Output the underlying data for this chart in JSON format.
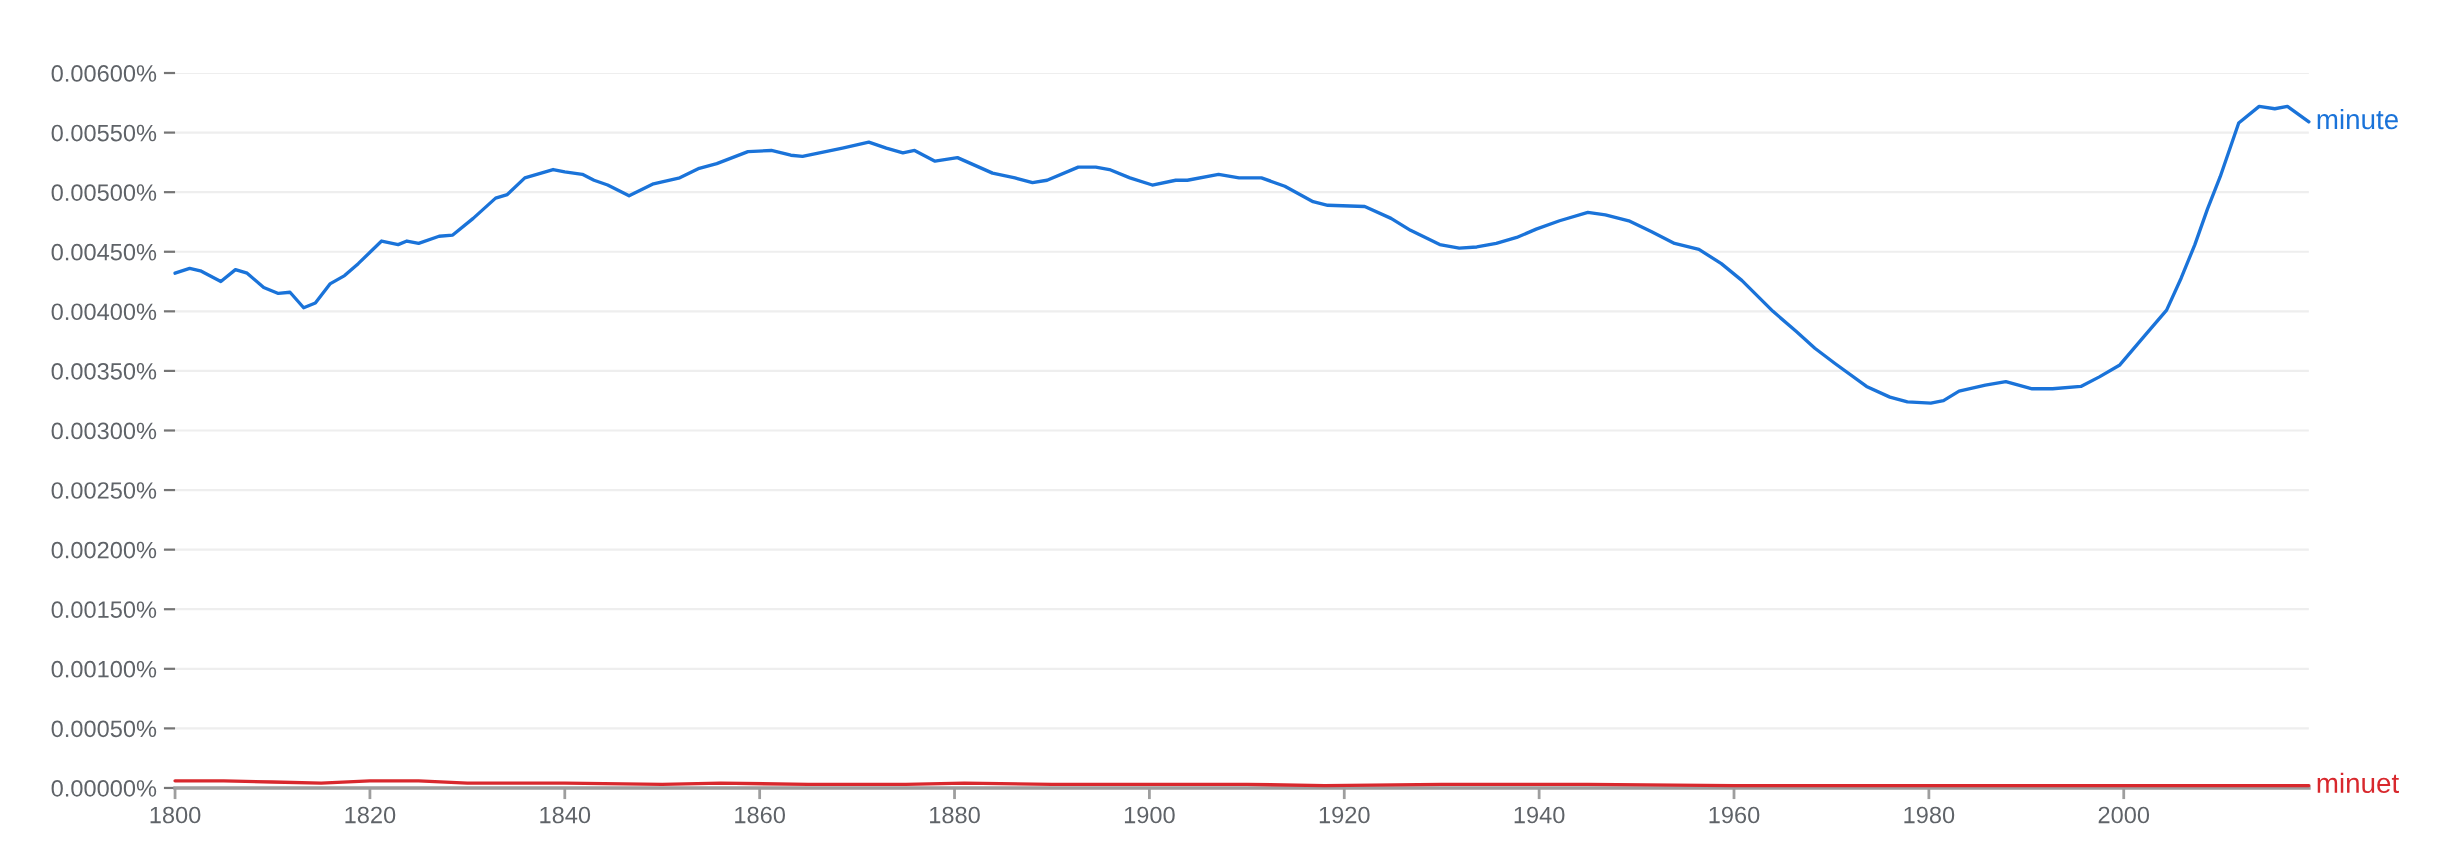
{
  "chart_data": {
    "type": "line",
    "xlim": [
      1800,
      2019
    ],
    "xticks": [
      1800,
      1820,
      1840,
      1860,
      1880,
      1900,
      1920,
      1940,
      1960,
      1980,
      2000
    ],
    "ylim": [
      0,
      0.006
    ],
    "yticks": [
      {
        "value": 0,
        "label": "0.00000%"
      },
      {
        "value": 0.0005,
        "label": "0.00050%"
      },
      {
        "value": 0.001,
        "label": "0.00100%"
      },
      {
        "value": 0.0015,
        "label": "0.00150%"
      },
      {
        "value": 0.002,
        "label": "0.00200%"
      },
      {
        "value": 0.0025,
        "label": "0.00250%"
      },
      {
        "value": 0.003,
        "label": "0.00300%"
      },
      {
        "value": 0.0035,
        "label": "0.00350%"
      },
      {
        "value": 0.004,
        "label": "0.00400%"
      },
      {
        "value": 0.0045,
        "label": "0.00450%"
      },
      {
        "value": 0.005,
        "label": "0.00500%"
      },
      {
        "value": 0.0055,
        "label": "0.00550%"
      },
      {
        "value": 0.006,
        "label": "0.00600%"
      }
    ],
    "grid": "y",
    "marker": "none",
    "line_style": "solid",
    "series": [
      {
        "name": "minute",
        "color": "#1a73d9",
        "x": [
          1800,
          1801.5,
          1802.6,
          1804.7,
          1806.2,
          1807.4,
          1809.1,
          1810.6,
          1811.8,
          1813.2,
          1814.4,
          1815.9,
          1817.4,
          1818.8,
          1821.2,
          1822.9,
          1823.8,
          1825,
          1827.1,
          1828.5,
          1830.6,
          1832.9,
          1834.1,
          1835.9,
          1838.8,
          1840,
          1841.8,
          1843,
          1844.4,
          1846.6,
          1849.1,
          1851.8,
          1853.8,
          1855.6,
          1858.8,
          1861.2,
          1863.2,
          1864.4,
          1868.5,
          1871.2,
          1873,
          1874.7,
          1875.9,
          1878,
          1880.3,
          1883.9,
          1886.2,
          1888,
          1889.5,
          1892.7,
          1894.5,
          1895.9,
          1898,
          1900.3,
          1902.7,
          1903.9,
          1907.1,
          1909.2,
          1911.5,
          1913.9,
          1916.8,
          1918.3,
          1922.1,
          1924.8,
          1926.8,
          1929.8,
          1931.8,
          1933.6,
          1935.6,
          1937.7,
          1939.7,
          1942.1,
          1945,
          1946.8,
          1949.2,
          1951.5,
          1953.9,
          1956.4,
          1958.7,
          1960.8,
          1964,
          1966.4,
          1968.3,
          1970.4,
          1973.6,
          1976,
          1977.8,
          1980.2,
          1981.5,
          1983.1,
          1985.8,
          1987.9,
          1990.6,
          1992.7,
          1995.6,
          1997.5,
          1999.6,
          2002.2,
          2004.4,
          2005.9,
          2007.3,
          2008.6,
          2009.9,
          2011.8,
          2013.9,
          2015.5,
          2016.8,
          2019
        ],
        "values": [
          0.00432,
          0.00436,
          0.00434,
          0.00425,
          0.00435,
          0.00432,
          0.0042,
          0.00415,
          0.00416,
          0.00403,
          0.00407,
          0.00423,
          0.0043,
          0.0044,
          0.00459,
          0.00456,
          0.00459,
          0.00457,
          0.00463,
          0.00464,
          0.00478,
          0.00495,
          0.00498,
          0.00512,
          0.00519,
          0.00517,
          0.00515,
          0.0051,
          0.00506,
          0.00497,
          0.00507,
          0.00512,
          0.0052,
          0.00524,
          0.00534,
          0.00535,
          0.00531,
          0.0053,
          0.00537,
          0.00542,
          0.00537,
          0.00533,
          0.00535,
          0.00526,
          0.00529,
          0.00516,
          0.00512,
          0.00508,
          0.0051,
          0.00521,
          0.00521,
          0.00519,
          0.00512,
          0.00506,
          0.0051,
          0.0051,
          0.00515,
          0.00512,
          0.00512,
          0.00505,
          0.00492,
          0.00489,
          0.00488,
          0.00478,
          0.00468,
          0.00456,
          0.00453,
          0.00454,
          0.00457,
          0.00462,
          0.00469,
          0.00476,
          0.00483,
          0.00481,
          0.00476,
          0.00467,
          0.00457,
          0.00452,
          0.0044,
          0.00426,
          0.004,
          0.00383,
          0.00369,
          0.00356,
          0.00337,
          0.00328,
          0.00324,
          0.00323,
          0.00325,
          0.00333,
          0.00338,
          0.00341,
          0.00335,
          0.00335,
          0.00337,
          0.00345,
          0.00355,
          0.0038,
          0.00401,
          0.00428,
          0.00456,
          0.00486,
          0.00513,
          0.00558,
          0.00572,
          0.0057,
          0.00572,
          0.00559
        ]
      },
      {
        "name": "minuet",
        "color": "#d8282d",
        "x": [
          1800,
          1805,
          1810,
          1815,
          1820,
          1825,
          1830,
          1840,
          1850,
          1856,
          1865,
          1875,
          1881,
          1890,
          1898,
          1910,
          1918,
          1930,
          1945,
          1960,
          1980,
          2000,
          2019
        ],
        "values": [
          6e-05,
          6e-05,
          5e-05,
          4e-05,
          6e-05,
          6e-05,
          4e-05,
          4e-05,
          3e-05,
          4e-05,
          3e-05,
          3e-05,
          4e-05,
          3e-05,
          3e-05,
          3e-05,
          2e-05,
          3e-05,
          3e-05,
          2e-05,
          2e-05,
          2e-05,
          2e-05
        ]
      }
    ]
  }
}
